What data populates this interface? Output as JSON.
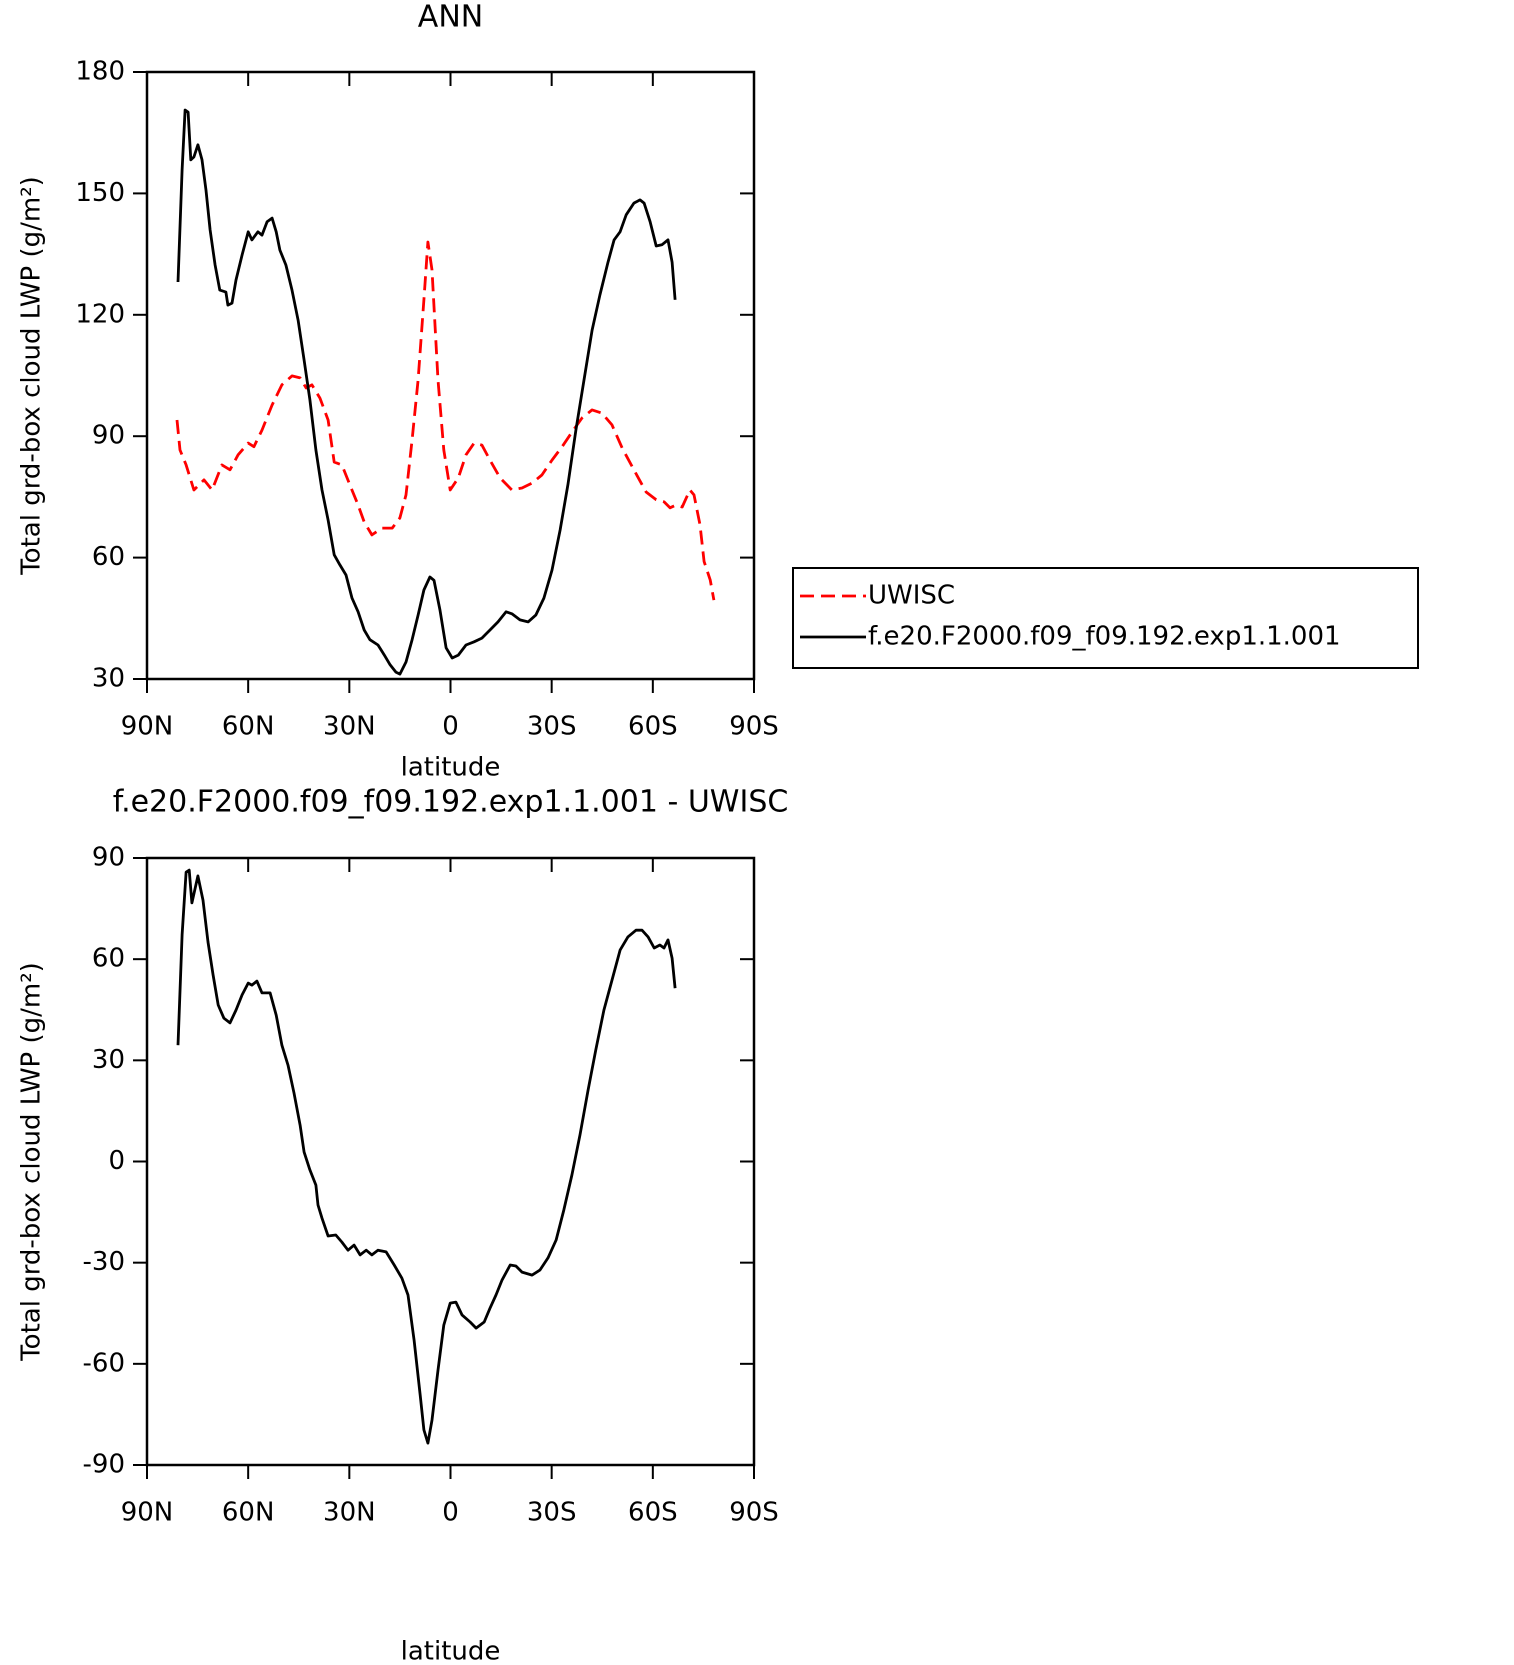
{
  "chart_data": [
    {
      "type": "line",
      "title": "ANN",
      "xlabel": "latitude",
      "ylabel": "Total grd-box cloud LWP (g/m²)",
      "xlim": [
        90,
        -90
      ],
      "ylim": [
        30,
        180
      ],
      "xticks": [
        {
          "value": 90,
          "label": "90N"
        },
        {
          "value": 60,
          "label": "60N"
        },
        {
          "value": 30,
          "label": "30N"
        },
        0,
        {
          "value": -30,
          "label": "30S"
        },
        {
          "value": -60,
          "label": "60S"
        },
        {
          "value": -90,
          "label": "90S"
        }
      ],
      "yticks": [
        30,
        60,
        90,
        120,
        150,
        180
      ],
      "legend": "right",
      "series": [
        {
          "name": "UWISC",
          "color": "#ff0000",
          "style": "dashed",
          "x": [
            81.1,
            80.2,
            78.4,
            76.1,
            73.1,
            70.7,
            67.8,
            65.4,
            63.0,
            60.0,
            58.3,
            55.9,
            52.9,
            50.0,
            47.0,
            44.6,
            42.8,
            41.1,
            38.7,
            36.3,
            34.5,
            32.2,
            29.8,
            27.4,
            25.6,
            23.3,
            20.3,
            17.3,
            15.0,
            13.2,
            11.4,
            9.6,
            7.9,
            6.7,
            5.5,
            3.7,
            2.0,
            0.1,
            -2.3,
            -4.6,
            -7.0,
            -9.3,
            -11.7,
            -14.7,
            -18.2,
            -21.2,
            -24.2,
            -27.1,
            -30.1,
            -33.1,
            -36.0,
            -39.0,
            -42.0,
            -44.9,
            -47.9,
            -50.9,
            -54.4,
            -58.0,
            -61.0,
            -63.3,
            -65.1,
            -66.9,
            -68.7,
            -71.0,
            -72.2,
            -74.0,
            -75.2,
            -77.0,
            -78.1
          ],
          "values": [
            94,
            86.6,
            82.9,
            76.7,
            79.2,
            76.7,
            82.9,
            81.7,
            85.4,
            88.3,
            87.4,
            91.5,
            97.7,
            102.7,
            104.9,
            104.4,
            101.9,
            102.7,
            99.4,
            94,
            83.6,
            82.9,
            77.9,
            73,
            68.8,
            65.6,
            67.3,
            67.3,
            69.8,
            75.5,
            89.1,
            103.9,
            123.7,
            138,
            131.1,
            103.9,
            86.6,
            76.7,
            79.7,
            85.4,
            88.3,
            87.8,
            84.1,
            79.7,
            76.7,
            77.2,
            78.4,
            80.4,
            84.1,
            87.4,
            91,
            94.5,
            96.5,
            95.7,
            92.8,
            87.1,
            81.7,
            76.2,
            74.3,
            73.8,
            72.3,
            73,
            72.5,
            76.7,
            75.5,
            68.1,
            59,
            54.5,
            49.5
          ]
        },
        {
          "name": "f.e20.F2000.f09_f09.192.exp1.1.001",
          "color": "#000000",
          "style": "solid",
          "x": [
            80.8,
            79.6,
            78.7,
            77.8,
            77.0,
            76.1,
            74.9,
            73.7,
            72.5,
            71.3,
            69.8,
            68.4,
            66.6,
            66.0,
            64.8,
            63.6,
            61.8,
            60.0,
            58.9,
            57.1,
            55.9,
            54.4,
            52.9,
            51.7,
            50.6,
            48.8,
            47.0,
            45.2,
            43.4,
            41.7,
            39.9,
            38.1,
            36.3,
            34.5,
            32.8,
            31.0,
            29.2,
            27.4,
            25.6,
            23.9,
            21.5,
            19.7,
            17.9,
            16.2,
            15.0,
            13.2,
            11.4,
            9.6,
            7.9,
            6.1,
            4.9,
            3.1,
            1.3,
            -0.5,
            -2.3,
            -4.6,
            -7.0,
            -9.3,
            -11.7,
            -14.1,
            -16.5,
            -18.2,
            -20.6,
            -23.0,
            -25.3,
            -27.7,
            -30.1,
            -32.5,
            -34.8,
            -37.2,
            -39.6,
            -42.0,
            -44.3,
            -46.7,
            -48.5,
            -50.3,
            -52.1,
            -54.4,
            -56.2,
            -57.4,
            -59.2,
            -61.0,
            -62.7,
            -64.5,
            -65.7,
            -66.6
          ],
          "values": [
            128.1,
            155.8,
            170.6,
            170.1,
            158.3,
            159.0,
            162,
            158.3,
            150.8,
            141,
            132.3,
            126.1,
            125.6,
            122.4,
            122.9,
            128.6,
            134.8,
            140.5,
            138.5,
            140.5,
            139.7,
            143,
            143.9,
            140.5,
            136,
            132.3,
            126.1,
            118.7,
            108.8,
            99,
            86.6,
            76.7,
            69.3,
            60.7,
            58.2,
            55.7,
            50,
            46.6,
            42.1,
            39.7,
            38.4,
            36,
            33.5,
            31.7,
            31.2,
            34.2,
            39.7,
            45.8,
            52,
            55.2,
            54.4,
            47,
            37.7,
            35.2,
            35.9,
            38.4,
            39.2,
            40.1,
            42.1,
            44.1,
            46.6,
            46.1,
            44.6,
            44.1,
            45.8,
            50,
            56.9,
            66.8,
            78,
            91.5,
            103.9,
            116.2,
            124.9,
            133,
            138.5,
            140.5,
            144.7,
            147.6,
            148.4,
            147.6,
            143,
            137,
            137.3,
            138.5,
            133,
            123.7
          ]
        }
      ]
    },
    {
      "type": "line",
      "title": "f.e20.F2000.f09_f09.192.exp1.1.001 - UWISC",
      "xlabel": "latitude",
      "ylabel": "Total grd-box cloud LWP (g/m²)",
      "xlim": [
        90,
        -90
      ],
      "ylim": [
        -90,
        90
      ],
      "xticks": [
        {
          "value": 90,
          "label": "90N"
        },
        {
          "value": 60,
          "label": "60N"
        },
        {
          "value": 30,
          "label": "30N"
        },
        0,
        {
          "value": -30,
          "label": "30S"
        },
        {
          "value": -60,
          "label": "60S"
        },
        {
          "value": -90,
          "label": "90S"
        }
      ],
      "yticks": [
        -90,
        -60,
        -30,
        0,
        30,
        60,
        90
      ],
      "series": [
        {
          "color": "#000000",
          "style": "solid",
          "x": [
            80.8,
            79.6,
            78.4,
            77.5,
            76.7,
            74.9,
            73.4,
            71.9,
            70.4,
            68.9,
            67.2,
            65.4,
            63.6,
            61.8,
            60.0,
            58.9,
            57.4,
            55.9,
            53.5,
            51.7,
            50.0,
            48.2,
            46.4,
            44.6,
            43.4,
            41.7,
            39.9,
            39.3,
            38.1,
            36.3,
            34.0,
            32.2,
            30.4,
            28.6,
            26.8,
            25.0,
            23.3,
            21.5,
            19.1,
            16.7,
            14.4,
            12.6,
            10.8,
            9.0,
            7.9,
            6.7,
            5.5,
            3.7,
            2.0,
            0.1,
            -1.6,
            -3.4,
            -5.8,
            -7.6,
            -10.0,
            -11.7,
            -13.5,
            -15.3,
            -17.7,
            -19.4,
            -21.2,
            -24.2,
            -26.5,
            -28.9,
            -31.3,
            -33.6,
            -36.0,
            -38.4,
            -40.8,
            -43.1,
            -45.5,
            -47.9,
            -50.3,
            -52.6,
            -55.0,
            -56.8,
            -58.6,
            -60.4,
            -62.1,
            -63.3,
            -64.5,
            -65.7,
            -66.6
          ],
          "values": [
            34.5,
            67.2,
            85.8,
            86.4,
            76.7,
            84.7,
            77.5,
            65.1,
            55.3,
            46.4,
            42.5,
            41.1,
            44.9,
            49.4,
            52.9,
            52.3,
            53.5,
            50,
            50,
            43.4,
            34.5,
            28.6,
            20.3,
            10.8,
            2.8,
            -2.5,
            -7,
            -12.9,
            -16.8,
            -22.1,
            -21.8,
            -23.9,
            -26.3,
            -24.8,
            -27.7,
            -26.3,
            -27.7,
            -26.3,
            -26.8,
            -30.7,
            -34.6,
            -39.6,
            -53,
            -69.3,
            -79.6,
            -83.5,
            -76.7,
            -61.9,
            -48.5,
            -42,
            -41.7,
            -45.5,
            -47.6,
            -49.4,
            -47.6,
            -43.5,
            -39.6,
            -35.1,
            -30.7,
            -31,
            -32.8,
            -33.7,
            -32.2,
            -28.6,
            -23.3,
            -14.4,
            -4,
            7.9,
            21.2,
            33.1,
            44.9,
            53.8,
            62.7,
            66.6,
            68.6,
            68.6,
            66.6,
            63.3,
            64.2,
            63.3,
            65.7,
            60.3,
            51.4
          ]
        }
      ]
    }
  ]
}
